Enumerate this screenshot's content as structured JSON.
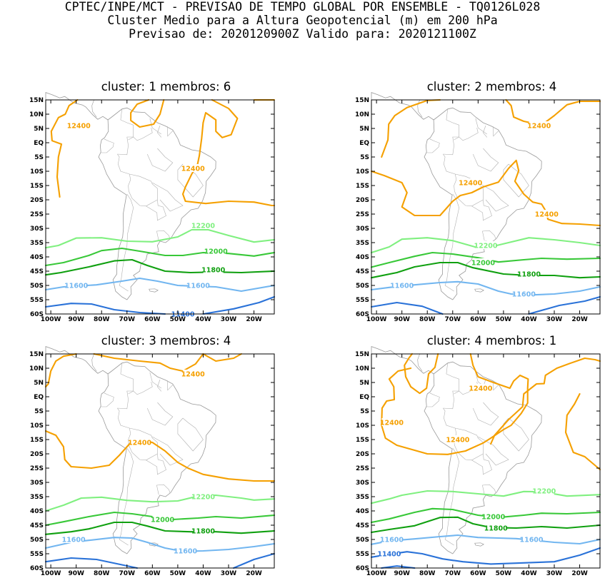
{
  "header": {
    "line1": "CPTEC/INPE/MCT - PREVISAO DE TEMPO GLOBAL POR ENSEMBLE - TQ0126L028",
    "line2": "Cluster Medio para a Altura Geopotencial (m) em 200 hPa",
    "line3": "Previsao de: 2020120900Z    Valido para: 2020121100Z"
  },
  "axes": {
    "lat_labels": [
      "15N",
      "10N",
      "5N",
      "EQ",
      "5S",
      "10S",
      "15S",
      "20S",
      "25S",
      "30S",
      "35S",
      "40S",
      "45S",
      "50S",
      "55S",
      "60S"
    ],
    "lon_labels": [
      "100W",
      "90W",
      "80W",
      "70W",
      "60W",
      "50W",
      "40W",
      "30W",
      "20W"
    ]
  },
  "colors": {
    "c12400": "#f5a000",
    "c12200": "#80f080",
    "c12000": "#38c838",
    "c11800": "#10a010",
    "c11600": "#72b6f0",
    "c11400": "#2a72d8",
    "coast": "#999999"
  },
  "panels": [
    {
      "title": "cluster: 1   membros: 6",
      "labels": [
        {
          "text": "12400",
          "lon": -89,
          "lat": 6,
          "color": "c12400"
        },
        {
          "text": "12400",
          "lon": -44,
          "lat": -9,
          "color": "c12400"
        },
        {
          "text": "12200",
          "lon": -40,
          "lat": -29,
          "color": "c12200"
        },
        {
          "text": "12000",
          "lon": -35,
          "lat": -38,
          "color": "c12000"
        },
        {
          "text": "11800",
          "lon": -36,
          "lat": -44.5,
          "color": "c11800"
        },
        {
          "text": "11600",
          "lon": -90,
          "lat": -50,
          "color": "c11600"
        },
        {
          "text": "11600",
          "lon": -42,
          "lat": -50,
          "color": "c11600"
        },
        {
          "text": "11400",
          "lon": -48,
          "lat": -60,
          "color": "c11400"
        }
      ]
    },
    {
      "title": "cluster: 2   membros: 4",
      "labels": [
        {
          "text": "12400",
          "lon": -36,
          "lat": 6,
          "color": "c12400"
        },
        {
          "text": "12400",
          "lon": -63,
          "lat": -14,
          "color": "c12400"
        },
        {
          "text": "12400",
          "lon": -33,
          "lat": -25,
          "color": "c12400"
        },
        {
          "text": "12200",
          "lon": -57,
          "lat": -36,
          "color": "c12200"
        },
        {
          "text": "12000",
          "lon": -58,
          "lat": -42,
          "color": "c12000"
        },
        {
          "text": "11800",
          "lon": -40,
          "lat": -46,
          "color": "c11800"
        },
        {
          "text": "11600",
          "lon": -90,
          "lat": -50,
          "color": "c11600"
        },
        {
          "text": "11600",
          "lon": -42,
          "lat": -53,
          "color": "c11600"
        }
      ]
    },
    {
      "title": "cluster: 3   membros: 4",
      "labels": [
        {
          "text": "12400",
          "lon": -44,
          "lat": 8,
          "color": "c12400"
        },
        {
          "text": "12400",
          "lon": -65,
          "lat": -16,
          "color": "c12400"
        },
        {
          "text": "12200",
          "lon": -40,
          "lat": -35,
          "color": "c12200"
        },
        {
          "text": "12000",
          "lon": -56,
          "lat": -43,
          "color": "c12000"
        },
        {
          "text": "11800",
          "lon": -40,
          "lat": -47,
          "color": "c11800"
        },
        {
          "text": "11600",
          "lon": -91,
          "lat": -50,
          "color": "c11600"
        },
        {
          "text": "11600",
          "lon": -47,
          "lat": -54,
          "color": "c11600"
        }
      ]
    },
    {
      "title": "cluster: 4   membros: 1",
      "labels": [
        {
          "text": "12400",
          "lon": -59,
          "lat": 3,
          "color": "c12400"
        },
        {
          "text": "12400",
          "lon": -94,
          "lat": -9,
          "color": "c12400"
        },
        {
          "text": "12400",
          "lon": -68,
          "lat": -15,
          "color": "c12400"
        },
        {
          "text": "12200",
          "lon": -34,
          "lat": -33,
          "color": "c12200"
        },
        {
          "text": "12000",
          "lon": -54,
          "lat": -42,
          "color": "c12000"
        },
        {
          "text": "11800",
          "lon": -53,
          "lat": -46,
          "color": "c11800"
        },
        {
          "text": "11600",
          "lon": -94,
          "lat": -50,
          "color": "c11600"
        },
        {
          "text": "11600",
          "lon": -39,
          "lat": -50,
          "color": "c11600"
        },
        {
          "text": "11400",
          "lon": -95,
          "lat": -55,
          "color": "c11400"
        }
      ]
    }
  ]
}
